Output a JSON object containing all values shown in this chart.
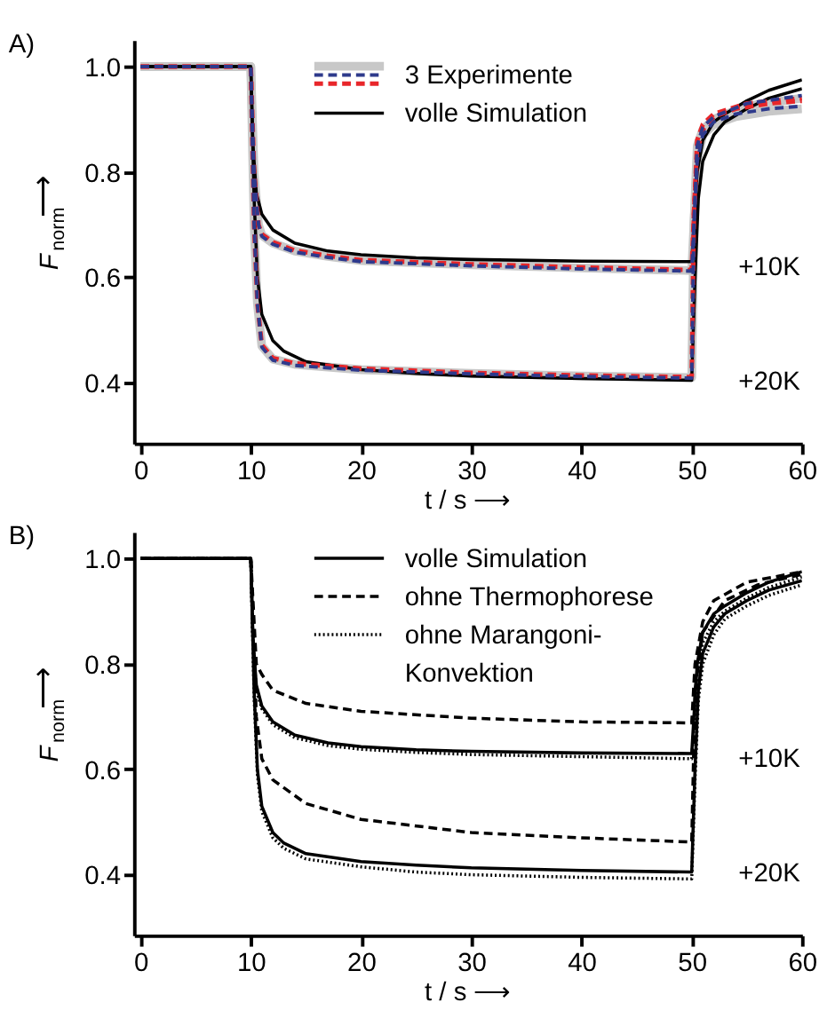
{
  "chart_data": [
    {
      "type": "line",
      "title": "A)",
      "xlabel": "t / s ⟶",
      "ylabel": "F$_{norm}$⟶",
      "xlim": [
        -0.6,
        60
      ],
      "ylim": [
        0.285,
        1.05
      ],
      "xticks": [
        0,
        10,
        20,
        30,
        40,
        50,
        60
      ],
      "yticks": [
        {
          "value": 0.4,
          "label": "0.4"
        },
        {
          "value": 0.6,
          "label": "0.6"
        },
        {
          "value": 0.8,
          "label": "0.8"
        },
        {
          "value": 1,
          "label": "1.0"
        }
      ],
      "legend": "top",
      "annotations": [
        "+10K",
        "+20K"
      ],
      "series": [
        {
          "name": "3 Experimente",
          "color": "#c8c8c8",
          "x": [
            0,
            10,
            10.3,
            10.7,
            11,
            12,
            14,
            17,
            20,
            30,
            40,
            50,
            50.2,
            50.5,
            51,
            52,
            54,
            57,
            60
          ],
          "values": [
            1,
            1,
            0.8,
            0.7,
            0.68,
            0.665,
            0.65,
            0.64,
            0.632,
            0.624,
            0.618,
            0.613,
            0.7,
            0.82,
            0.87,
            0.89,
            0.905,
            0.915,
            0.92
          ]
        },
        {
          "color": "#2e3a8c",
          "line_style": "dashed",
          "x": [
            0,
            10,
            10.3,
            10.7,
            11,
            12,
            14,
            17,
            20,
            30,
            40,
            50,
            50.2,
            50.5,
            51,
            52,
            54,
            57,
            60
          ],
          "values": [
            1,
            1,
            0.8,
            0.7,
            0.678,
            0.663,
            0.648,
            0.638,
            0.63,
            0.622,
            0.616,
            0.612,
            0.7,
            0.82,
            0.87,
            0.895,
            0.91,
            0.92,
            0.925
          ]
        },
        {
          "color": "#e8262a",
          "line_style": "dashed",
          "x": [
            0,
            10,
            10.3,
            10.7,
            11,
            12,
            14,
            17,
            20,
            30,
            40,
            50,
            50.2,
            50.5,
            51,
            52,
            54,
            57,
            60
          ],
          "values": [
            1,
            1,
            0.8,
            0.7,
            0.682,
            0.667,
            0.651,
            0.641,
            0.633,
            0.625,
            0.619,
            0.614,
            0.72,
            0.84,
            0.88,
            0.905,
            0.92,
            0.93,
            0.935
          ]
        },
        {
          "name": "volle Simulation",
          "color": "#000000",
          "x": [
            0,
            10,
            10.2,
            10.5,
            11,
            12,
            14,
            17,
            20,
            25,
            30,
            40,
            50,
            50.2,
            50.5,
            51,
            52,
            53,
            55,
            57,
            60
          ],
          "values": [
            1,
            1,
            0.85,
            0.76,
            0.72,
            0.69,
            0.665,
            0.65,
            0.643,
            0.637,
            0.634,
            0.631,
            0.63,
            0.7,
            0.8,
            0.86,
            0.895,
            0.91,
            0.935,
            0.955,
            0.975
          ]
        },
        {
          "color": "#c8c8c8",
          "x": [
            0,
            10,
            10.3,
            10.6,
            11,
            12,
            14,
            20,
            30,
            40,
            50,
            50.2,
            50.5,
            51,
            52,
            55,
            60
          ],
          "values": [
            1,
            1,
            0.7,
            0.55,
            0.47,
            0.445,
            0.435,
            0.425,
            0.418,
            0.413,
            0.41,
            0.7,
            0.85,
            0.88,
            0.9,
            0.925,
            0.94
          ]
        },
        {
          "color": "#2e3a8c",
          "line_style": "dashed",
          "x": [
            0,
            10,
            10.3,
            10.6,
            11,
            12,
            14,
            20,
            30,
            40,
            50,
            50.2,
            50.5,
            51,
            52,
            55,
            60
          ],
          "values": [
            1,
            1,
            0.7,
            0.55,
            0.468,
            0.443,
            0.433,
            0.424,
            0.417,
            0.412,
            0.409,
            0.7,
            0.85,
            0.885,
            0.905,
            0.93,
            0.945
          ]
        },
        {
          "color": "#e8262a",
          "line_style": "dashed",
          "x": [
            0,
            10,
            10.3,
            10.6,
            11,
            12,
            14,
            20,
            30,
            40,
            50,
            50.2,
            50.5,
            51,
            52,
            55,
            60
          ],
          "values": [
            1,
            1,
            0.7,
            0.55,
            0.472,
            0.447,
            0.437,
            0.427,
            0.419,
            0.414,
            0.411,
            0.72,
            0.86,
            0.89,
            0.91,
            0.93,
            0.94
          ]
        },
        {
          "color": "#000000",
          "x": [
            0,
            10,
            10.3,
            10.6,
            11,
            12,
            13,
            15,
            20,
            25,
            30,
            40,
            50,
            50.3,
            50.6,
            51,
            52,
            53,
            55,
            57,
            60
          ],
          "values": [
            1,
            1,
            0.75,
            0.6,
            0.53,
            0.48,
            0.46,
            0.44,
            0.425,
            0.418,
            0.413,
            0.408,
            0.405,
            0.6,
            0.75,
            0.82,
            0.87,
            0.895,
            0.92,
            0.94,
            0.958
          ]
        }
      ]
    },
    {
      "type": "line",
      "title": "B)",
      "xlabel": "t / s ⟶",
      "ylabel": "F$_{norm}$⟶",
      "xlim": [
        -0.6,
        60
      ],
      "ylim": [
        0.285,
        1.05
      ],
      "xticks": [
        0,
        10,
        20,
        30,
        40,
        50,
        60
      ],
      "yticks": [
        {
          "value": 0.4,
          "label": "0.4"
        },
        {
          "value": 0.6,
          "label": "0.6"
        },
        {
          "value": 0.8,
          "label": "0.8"
        },
        {
          "value": 1,
          "label": "1.0"
        }
      ],
      "legend": "top",
      "annotations": [
        "+10K",
        "+20K"
      ],
      "series": [
        {
          "name": "volle Simulation",
          "color": "#000000",
          "x": [
            0,
            10,
            10.2,
            10.5,
            11,
            12,
            14,
            17,
            20,
            25,
            30,
            40,
            50,
            50.2,
            50.5,
            51,
            52,
            53,
            55,
            57,
            60
          ],
          "values": [
            1,
            1,
            0.85,
            0.76,
            0.72,
            0.69,
            0.665,
            0.65,
            0.643,
            0.637,
            0.634,
            0.631,
            0.63,
            0.7,
            0.8,
            0.86,
            0.895,
            0.91,
            0.935,
            0.955,
            0.975
          ]
        },
        {
          "name": "ohne Thermophorese",
          "color": "#000000",
          "line_style": "dashed",
          "x": [
            0,
            10,
            10.5,
            11,
            12,
            15,
            20,
            30,
            40,
            50,
            50.3,
            51,
            52,
            55,
            60
          ],
          "values": [
            1,
            1,
            0.8,
            0.78,
            0.75,
            0.725,
            0.71,
            0.697,
            0.69,
            0.688,
            0.8,
            0.88,
            0.92,
            0.955,
            0.975
          ]
        },
        {
          "name": "ohne Marangoni-\nKonvektion",
          "color": "#000000",
          "line_style": "dotted",
          "x": [
            0,
            10,
            10.2,
            10.5,
            11,
            12,
            14,
            17,
            20,
            25,
            30,
            40,
            50,
            50.2,
            50.5,
            51,
            52,
            53,
            55,
            57,
            60
          ],
          "values": [
            1,
            1,
            0.84,
            0.75,
            0.715,
            0.685,
            0.66,
            0.645,
            0.638,
            0.632,
            0.628,
            0.624,
            0.62,
            0.68,
            0.78,
            0.84,
            0.88,
            0.9,
            0.925,
            0.945,
            0.965
          ]
        },
        {
          "color": "#000000",
          "x": [
            0,
            10,
            10.3,
            10.6,
            11,
            12,
            13,
            15,
            20,
            25,
            30,
            40,
            50,
            50.3,
            50.6,
            51,
            52,
            53,
            55,
            57,
            60
          ],
          "values": [
            1,
            1,
            0.75,
            0.6,
            0.53,
            0.48,
            0.46,
            0.44,
            0.425,
            0.418,
            0.413,
            0.408,
            0.405,
            0.6,
            0.75,
            0.82,
            0.87,
            0.895,
            0.92,
            0.94,
            0.958
          ]
        },
        {
          "color": "#000000",
          "line_style": "dashed",
          "x": [
            0,
            10,
            10.5,
            11,
            12,
            15,
            20,
            30,
            40,
            50,
            50.3,
            51,
            53,
            56,
            60
          ],
          "values": [
            1,
            1,
            0.7,
            0.62,
            0.58,
            0.535,
            0.505,
            0.48,
            0.47,
            0.462,
            0.75,
            0.86,
            0.92,
            0.95,
            0.97
          ]
        },
        {
          "color": "#000000",
          "line_style": "dotted",
          "x": [
            0,
            10,
            10.3,
            10.6,
            11,
            12,
            13,
            15,
            20,
            25,
            30,
            40,
            50,
            50.3,
            50.6,
            51,
            52,
            53,
            55,
            57,
            60
          ],
          "values": [
            1,
            1,
            0.74,
            0.59,
            0.52,
            0.47,
            0.45,
            0.43,
            0.415,
            0.405,
            0.4,
            0.395,
            0.392,
            0.58,
            0.73,
            0.8,
            0.855,
            0.885,
            0.91,
            0.93,
            0.95
          ]
        }
      ]
    }
  ]
}
